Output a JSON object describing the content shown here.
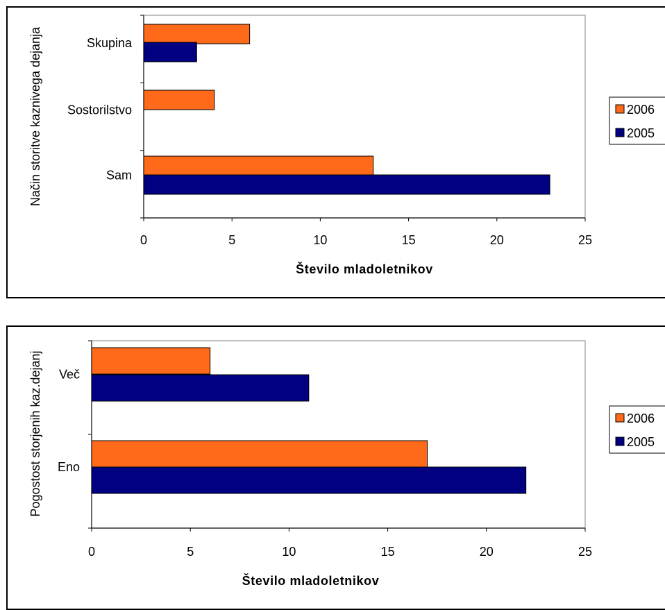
{
  "colors": {
    "s2006": "#ff6a1a",
    "s2005": "#000080",
    "axis": "#000000"
  },
  "chart_data": [
    {
      "type": "bar",
      "orientation": "horizontal",
      "categories": [
        "Skupina",
        "Sostorilstvo",
        "Sam"
      ],
      "series": [
        {
          "name": "2006",
          "values": [
            6,
            4,
            13
          ]
        },
        {
          "name": "2005",
          "values": [
            3,
            0,
            23
          ]
        }
      ],
      "xlabel": "Število mladoletnikov",
      "ylabel": "Način storitve kaznivega dejanja",
      "xlim": [
        0,
        25
      ],
      "xticks": [
        "0",
        "5",
        "10",
        "15",
        "20",
        "25"
      ],
      "legend": [
        "2006",
        "2005"
      ],
      "legend_position": "right",
      "grid": false
    },
    {
      "type": "bar",
      "orientation": "horizontal",
      "categories": [
        "Več",
        "Eno"
      ],
      "series": [
        {
          "name": "2006",
          "values": [
            6,
            17
          ]
        },
        {
          "name": "2005",
          "values": [
            11,
            22
          ]
        }
      ],
      "xlabel": "Število mladoletnikov",
      "ylabel": "Pogostost storjenih kaz.dejanj",
      "xlim": [
        0,
        25
      ],
      "xticks": [
        "0",
        "5",
        "10",
        "15",
        "20",
        "25"
      ],
      "legend": [
        "2006",
        "2005"
      ],
      "legend_position": "right",
      "grid": false
    }
  ]
}
